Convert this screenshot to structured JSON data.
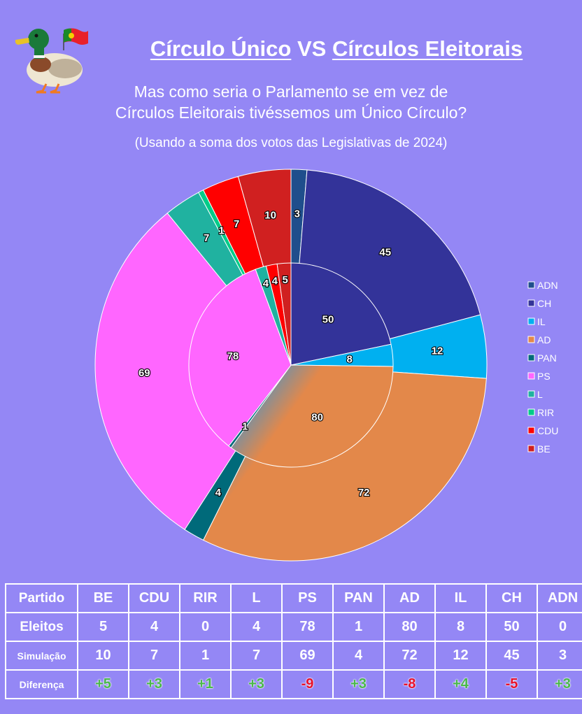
{
  "header": {
    "title_part1": "Círculo Único",
    "title_vs": " VS ",
    "title_part2": "Círculos Eleitorais",
    "subtitle_line1": "Mas como seria o Parlamento se em vez de",
    "subtitle_line2": "Círculos Eleitorais tivéssemos um Único Círculo?",
    "note": "(Usando a soma dos votos das Legislativas de 2024)"
  },
  "chart_data": {
    "type": "pie",
    "subtype": "nested-donut",
    "legend_position": "right",
    "series": [
      {
        "role": "outer",
        "categories": [
          "ADN",
          "CH",
          "IL",
          "AD",
          "PAN",
          "PS",
          "L",
          "RIR",
          "CDU",
          "BE"
        ],
        "values": [
          3,
          45,
          12,
          72,
          4,
          69,
          7,
          1,
          7,
          10
        ]
      },
      {
        "role": "inner",
        "categories": [
          "ADN",
          "CH",
          "IL",
          "AD",
          "PAN",
          "PS",
          "L",
          "RIR",
          "CDU",
          "BE"
        ],
        "values": [
          0,
          50,
          8,
          80,
          1,
          78,
          4,
          0,
          4,
          5
        ]
      }
    ],
    "legend": [
      "ADN",
      "CH",
      "IL",
      "AD",
      "PAN",
      "PS",
      "L",
      "RIR",
      "CDU",
      "BE"
    ],
    "colors": {
      "ADN": "#1f4e8c",
      "CH": "#333399",
      "IL": "#00b0f0",
      "AD": "#e3884a",
      "AD_gradient": "#2196e8",
      "PAN": "#006a7a",
      "PS": "#ff66ff",
      "L": "#20b2a0",
      "RIR": "#00cc88",
      "CDU": "#ff0000",
      "BE": "#d02020"
    }
  },
  "table": {
    "rows": [
      {
        "header": "Partido",
        "cells": [
          "BE",
          "CDU",
          "RIR",
          "L",
          "PS",
          "PAN",
          "AD",
          "IL",
          "CH",
          "ADN"
        ]
      },
      {
        "header": "Eleitos",
        "cells": [
          "5",
          "4",
          "0",
          "4",
          "78",
          "1",
          "80",
          "8",
          "50",
          "0"
        ]
      },
      {
        "header": "Simulação",
        "cells": [
          "10",
          "7",
          "1",
          "7",
          "69",
          "4",
          "72",
          "12",
          "45",
          "3"
        ]
      },
      {
        "header": "Diferença",
        "cells": [
          "+5",
          "+3",
          "+1",
          "+3",
          "-9",
          "+3",
          "-8",
          "+4",
          "-5",
          "+3"
        ]
      }
    ]
  }
}
